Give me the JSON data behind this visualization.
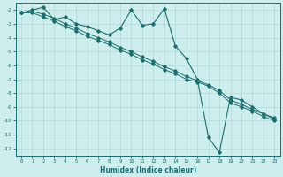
{
  "xlabel": "Humidex (Indice chaleur)",
  "bg_color": "#ceeeed",
  "grid_color": "#b0d8d8",
  "line_color": "#1a6e6e",
  "xlim": [
    -0.5,
    23.5
  ],
  "ylim": [
    -12.5,
    -1.5
  ],
  "yticks": [
    -2,
    -3,
    -4,
    -5,
    -6,
    -7,
    -8,
    -9,
    -10,
    -11,
    -12
  ],
  "xticks": [
    0,
    1,
    2,
    3,
    4,
    5,
    6,
    7,
    8,
    9,
    10,
    11,
    12,
    13,
    14,
    15,
    16,
    17,
    18,
    19,
    20,
    21,
    22,
    23
  ],
  "series_wavy": [
    [
      0,
      -2.2
    ],
    [
      1,
      -2.0
    ],
    [
      2,
      -1.8
    ],
    [
      3,
      -2.7
    ],
    [
      4,
      -2.5
    ],
    [
      5,
      -3.0
    ],
    [
      6,
      -3.2
    ],
    [
      7,
      -3.5
    ],
    [
      8,
      -3.8
    ],
    [
      9,
      -3.3
    ],
    [
      10,
      -2.0
    ],
    [
      11,
      -3.1
    ],
    [
      12,
      -3.0
    ],
    [
      13,
      -1.9
    ],
    [
      14,
      -4.6
    ],
    [
      15,
      -5.5
    ],
    [
      16,
      -7.0
    ],
    [
      17,
      -11.2
    ],
    [
      18,
      -12.3
    ],
    [
      19,
      -8.3
    ],
    [
      20,
      -8.5
    ],
    [
      21,
      -9.0
    ],
    [
      22,
      -9.5
    ],
    [
      23,
      -9.8
    ]
  ],
  "series_linear1": [
    [
      0,
      -2.2
    ],
    [
      1,
      -2.1
    ],
    [
      2,
      -2.3
    ],
    [
      3,
      -2.6
    ],
    [
      4,
      -3.0
    ],
    [
      5,
      -3.3
    ],
    [
      6,
      -3.7
    ],
    [
      7,
      -4.0
    ],
    [
      8,
      -4.3
    ],
    [
      9,
      -4.7
    ],
    [
      10,
      -5.0
    ],
    [
      11,
      -5.4
    ],
    [
      12,
      -5.7
    ],
    [
      13,
      -6.1
    ],
    [
      14,
      -6.4
    ],
    [
      15,
      -6.8
    ],
    [
      16,
      -7.1
    ],
    [
      17,
      -7.4
    ],
    [
      18,
      -7.8
    ],
    [
      19,
      -8.5
    ],
    [
      20,
      -8.8
    ],
    [
      21,
      -9.2
    ],
    [
      22,
      -9.5
    ],
    [
      23,
      -9.9
    ]
  ],
  "series_linear2": [
    [
      0,
      -2.2
    ],
    [
      1,
      -2.2
    ],
    [
      2,
      -2.5
    ],
    [
      3,
      -2.8
    ],
    [
      4,
      -3.2
    ],
    [
      5,
      -3.5
    ],
    [
      6,
      -3.9
    ],
    [
      7,
      -4.2
    ],
    [
      8,
      -4.5
    ],
    [
      9,
      -4.9
    ],
    [
      10,
      -5.2
    ],
    [
      11,
      -5.6
    ],
    [
      12,
      -5.9
    ],
    [
      13,
      -6.3
    ],
    [
      14,
      -6.6
    ],
    [
      15,
      -7.0
    ],
    [
      16,
      -7.2
    ],
    [
      17,
      -7.5
    ],
    [
      18,
      -8.0
    ],
    [
      19,
      -8.7
    ],
    [
      20,
      -9.0
    ],
    [
      21,
      -9.3
    ],
    [
      22,
      -9.7
    ],
    [
      23,
      -10.0
    ]
  ]
}
